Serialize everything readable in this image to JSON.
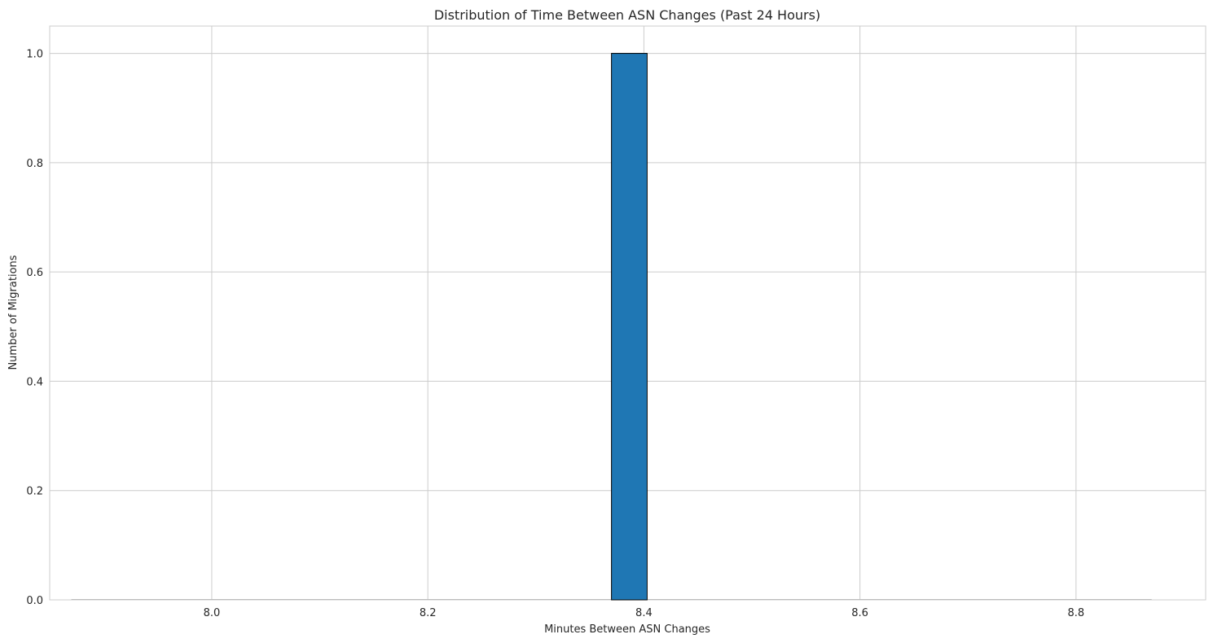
{
  "chart_data": {
    "type": "bar",
    "title": "Distribution of Time Between ASN Changes (Past 24 Hours)",
    "xlabel": "Minutes Between ASN Changes",
    "ylabel": "Number of Migrations",
    "xlim": [
      7.85,
      8.92
    ],
    "ylim": [
      0.0,
      1.05
    ],
    "xticks": [
      8.0,
      8.2,
      8.4,
      8.6,
      8.8
    ],
    "xtick_labels": [
      "8.0",
      "8.2",
      "8.4",
      "8.6",
      "8.8"
    ],
    "yticks": [
      0.0,
      0.2,
      0.4,
      0.6,
      0.8,
      1.0
    ],
    "ytick_labels": [
      "0.0",
      "0.2",
      "0.4",
      "0.6",
      "0.8",
      "1.0"
    ],
    "bin_range": [
      7.87,
      8.87
    ],
    "bin_count": 30,
    "bins": [
      {
        "x0": 8.37,
        "x1": 8.403,
        "count": 1
      }
    ],
    "grid": true,
    "bar_color": "#1f77b4",
    "bar_edge_color": "#000000"
  }
}
